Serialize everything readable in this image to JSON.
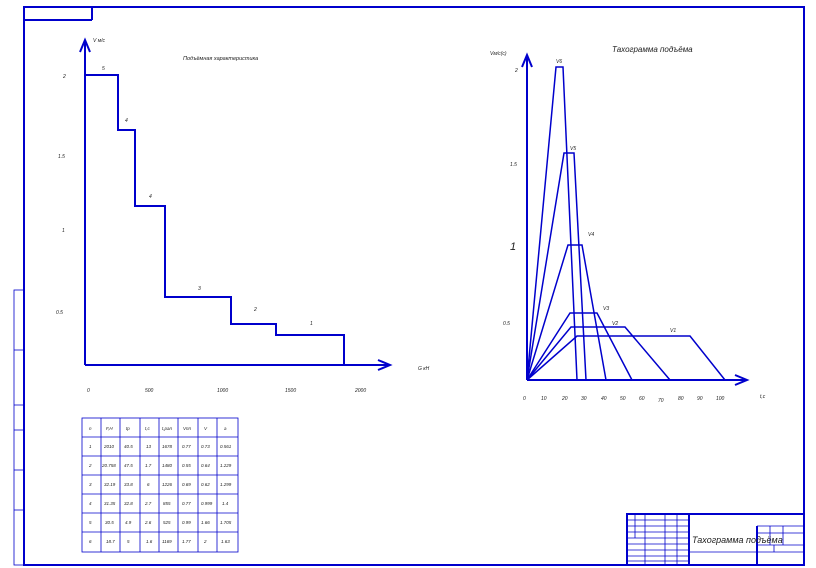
{
  "left_chart": {
    "title": "Подъёмная характеристика",
    "y_axis_label": "V м/с",
    "x_axis_label": "G кН",
    "y_ticks": [
      "2",
      "1.5",
      "1",
      "0.5"
    ],
    "x_ticks": [
      "0",
      "500",
      "1000",
      "1500",
      "2000"
    ],
    "step_labels": [
      "5",
      "4",
      "4",
      "3",
      "2",
      "1"
    ]
  },
  "right_chart": {
    "title": "Тахограмма подъёма",
    "y_axis_label": "Vм/с(с)",
    "x_axis_label": "t,с",
    "y_ticks": [
      "2",
      "1.5",
      "1",
      "0.5"
    ],
    "x_ticks": [
      "0",
      "10",
      "20",
      "30",
      "40",
      "50",
      "60",
      "70",
      "80",
      "90",
      "100"
    ],
    "curve_labels": [
      "V6",
      "V5",
      "V4",
      "V3",
      "V2",
      "V1"
    ]
  },
  "table": {
    "headers": [
      "n",
      "F,Н",
      "tр",
      "t,с",
      "t,рап",
      "Vпп",
      "V",
      "a"
    ],
    "rows": [
      [
        "1",
        "2010",
        "40.5",
        "13",
        "1678",
        "0.77",
        "0.73",
        "0.561"
      ],
      [
        "2",
        "20.758",
        "47.5",
        "1.7",
        "1480",
        "0.55",
        "0.64",
        "1.229"
      ],
      [
        "3",
        "32.19",
        "33.8",
        "6",
        "1226",
        "0.69",
        "0.62",
        "1.299"
      ],
      [
        "4",
        "31.35",
        "32.8",
        "2.7",
        "855",
        "0.77",
        "0.999",
        "1.4"
      ],
      [
        "5",
        "30.5",
        "4.9",
        "2.6",
        "525",
        "0.99",
        "1.66",
        "1.705"
      ],
      [
        "6",
        "18.7",
        "5",
        "1.6",
        "1169",
        "1.77",
        "2",
        "1.63"
      ]
    ]
  },
  "title_block": {
    "drawing_title": "Тахограмма подъёма"
  }
}
